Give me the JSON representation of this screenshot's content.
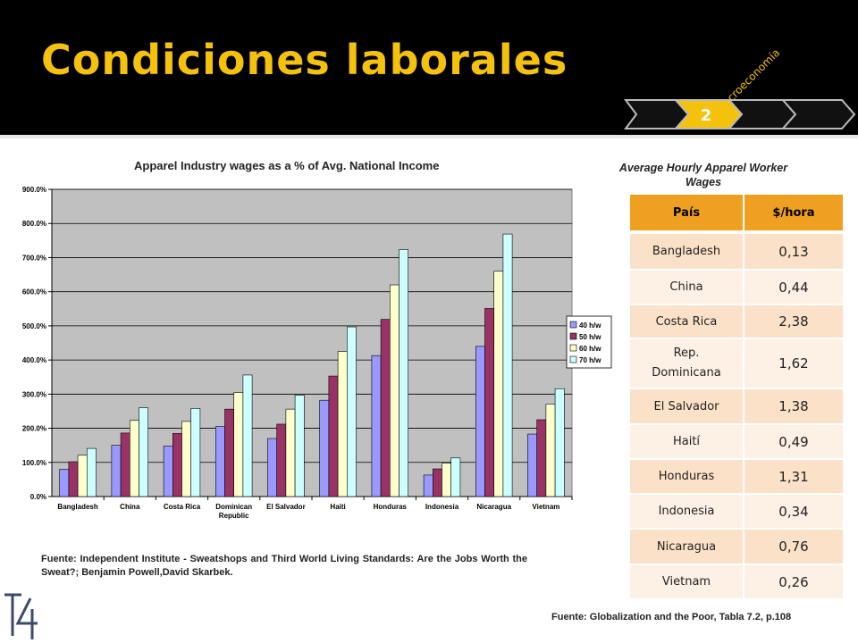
{
  "slide": {
    "title": "Condiciones laborales",
    "tagline": "Macroeconomía",
    "nav_step": "2",
    "accent_color": "#f4c20d"
  },
  "chart_data": {
    "type": "bar",
    "title": "Apparel Industry wages as a % of Avg. National Income",
    "categories": [
      "Bangladesh",
      "China",
      "Costa Rica",
      "Dominican Republic",
      "El Salvador",
      "Haiti",
      "Honduras",
      "Indonesia",
      "Nicaragua",
      "Vietnam"
    ],
    "series": [
      {
        "name": "40 h/w",
        "color": "#9999ff",
        "values": [
          80,
          150,
          148,
          205,
          170,
          282,
          413,
          63,
          440,
          183
        ]
      },
      {
        "name": "50 h/w",
        "color": "#993366",
        "values": [
          102,
          186,
          185,
          256,
          212,
          353,
          519,
          81,
          551,
          225
        ]
      },
      {
        "name": "60 h/w",
        "color": "#ffffcc",
        "values": [
          121,
          223,
          220,
          305,
          256,
          425,
          620,
          98,
          660,
          271
        ]
      },
      {
        "name": "70 h/w",
        "color": "#ccffff",
        "values": [
          141,
          260,
          258,
          356,
          297,
          497,
          723,
          113,
          769,
          316
        ]
      }
    ],
    "yticks": [
      "0.0%",
      "100.0%",
      "200.0%",
      "300.0%",
      "400.0%",
      "500.0%",
      "600.0%",
      "700.0%",
      "800.0%",
      "900.0%"
    ],
    "ylim": [
      0,
      900
    ],
    "grid": true,
    "legend": "right",
    "plot_bg": "#c0c0c0"
  },
  "source1": "Fuente: Independent Institute - Sweatshops and Third World Living Standards: Are the Jobs Worth the Sweat?; Benjamin Powell,David Skarbek.",
  "wage_table": {
    "title": "Average Hourly Apparel Worker Wages",
    "header_color": "#f0a020",
    "headers": [
      "País",
      "$/hora"
    ],
    "rows": [
      {
        "country": "Bangladesh",
        "wage": "0,13"
      },
      {
        "country": "China",
        "wage": "0,44"
      },
      {
        "country": "Costa Rica",
        "wage": "2,38"
      },
      {
        "country": "Rep. Dominicana",
        "wage": "1,62"
      },
      {
        "country": "El Salvador",
        "wage": "1,38"
      },
      {
        "country": "Haití",
        "wage": "0,49"
      },
      {
        "country": "Honduras",
        "wage": "1,31"
      },
      {
        "country": "Indonesia",
        "wage": "0,34"
      },
      {
        "country": "Nicaragua",
        "wage": "0,76"
      },
      {
        "country": "Vietnam",
        "wage": "0,26"
      }
    ]
  },
  "source2": "Fuente: Globalization and the Poor, Tabla 7.2, p.108",
  "logo_text": "T4"
}
